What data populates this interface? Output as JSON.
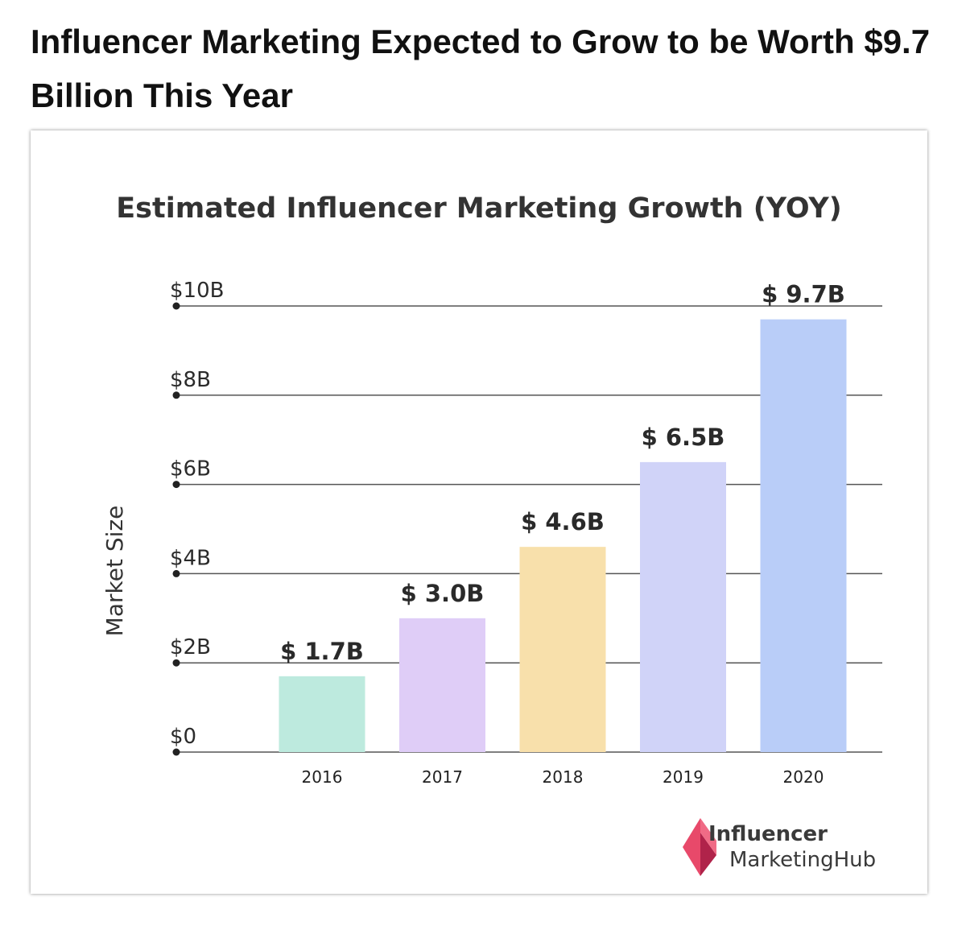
{
  "headline": "Influencer Marketing Expected to Grow to be Worth $9.7 Billion This Year",
  "logo": {
    "line1": "Influencer",
    "line2": "MarketingHub",
    "icon": "diamond-logo-icon",
    "colors": [
      "#e8496a",
      "#b0234a"
    ]
  },
  "chart_data": {
    "type": "bar",
    "title": "Estimated Influencer Marketing Growth (YOY)",
    "ylabel": "Market Size",
    "xlabel": "",
    "categories": [
      "2016",
      "2017",
      "2018",
      "2019",
      "2020"
    ],
    "values": [
      1.7,
      3.0,
      4.6,
      6.5,
      9.7
    ],
    "data_labels": [
      "$ 1.7B",
      "$ 3.0B",
      "$ 4.6B",
      "$ 6.5B",
      "$ 9.7B"
    ],
    "bar_colors": [
      "#bdeade",
      "#dfcdf7",
      "#f8e0ab",
      "#d0d3f8",
      "#b9cdf8"
    ],
    "ylim": [
      0,
      10
    ],
    "yticks": [
      {
        "value": 0,
        "label": "$0"
      },
      {
        "value": 2,
        "label": "$2B"
      },
      {
        "value": 4,
        "label": "$4B"
      },
      {
        "value": 6,
        "label": "$6B"
      },
      {
        "value": 8,
        "label": "$8B"
      },
      {
        "value": 10,
        "label": "$10B"
      }
    ],
    "grid": true,
    "legend": "none"
  }
}
